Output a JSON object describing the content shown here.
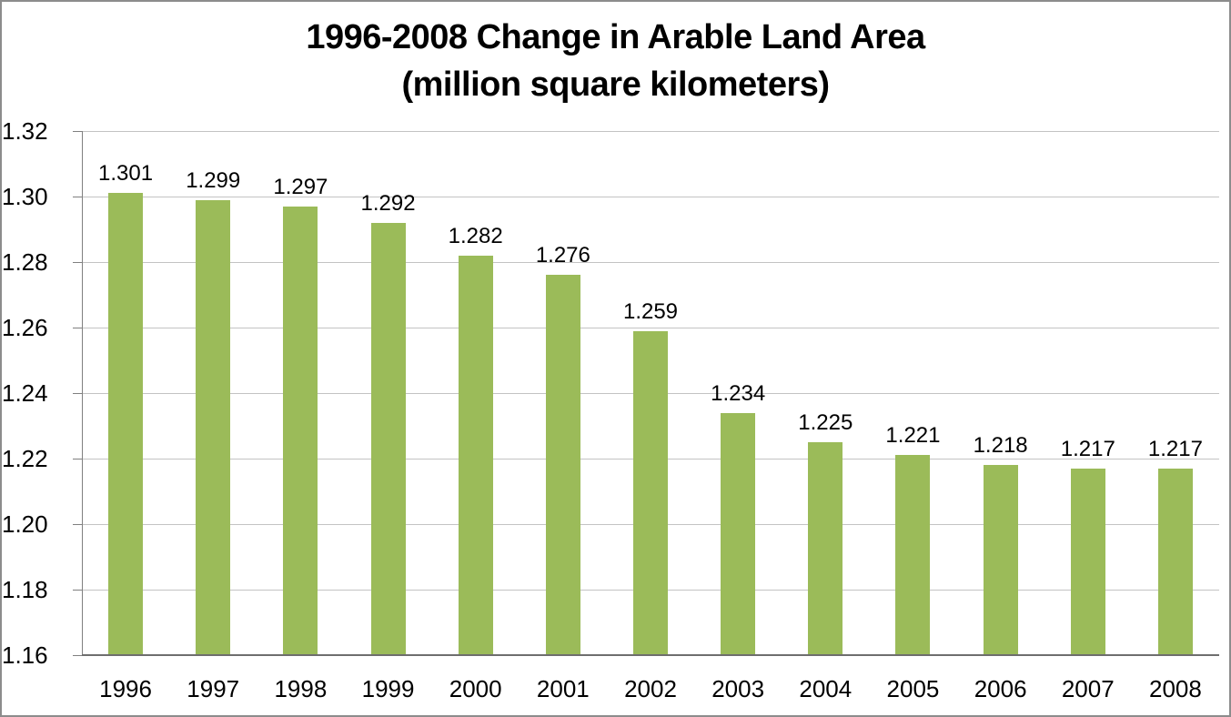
{
  "window": {
    "background": "#FFFFFF",
    "border_color": "#8C8C8C"
  },
  "chart_data": {
    "type": "bar",
    "title": "1996-2008 Change in Arable Land Area",
    "subtitle": "(million square kilometers)",
    "categories": [
      "1996",
      "1997",
      "1998",
      "1999",
      "2000",
      "2001",
      "2002",
      "2003",
      "2004",
      "2005",
      "2006",
      "2007",
      "2008"
    ],
    "values": [
      1.301,
      1.299,
      1.297,
      1.292,
      1.282,
      1.276,
      1.259,
      1.234,
      1.225,
      1.221,
      1.218,
      1.217,
      1.217
    ],
    "data_labels": [
      "1.301",
      "1.299",
      "1.297",
      "1.292",
      "1.282",
      "1.276",
      "1.259",
      "1.234",
      "1.225",
      "1.221",
      "1.218",
      "1.217",
      "1.217"
    ],
    "xlabel": "",
    "ylabel": "",
    "ylim": [
      1.16,
      1.32
    ],
    "ytick_step": 0.02,
    "yticks": [
      "1.16",
      "1.18",
      "1.20",
      "1.22",
      "1.24",
      "1.26",
      "1.28",
      "1.30",
      "1.32"
    ],
    "grid": true,
    "legend_position": "none",
    "bar_color": "#9BBB59",
    "gridline_color": "#C3C3C3",
    "axis_color": "#808080",
    "category_axis_color": "#6E6E6E",
    "text_color": "#000000"
  }
}
